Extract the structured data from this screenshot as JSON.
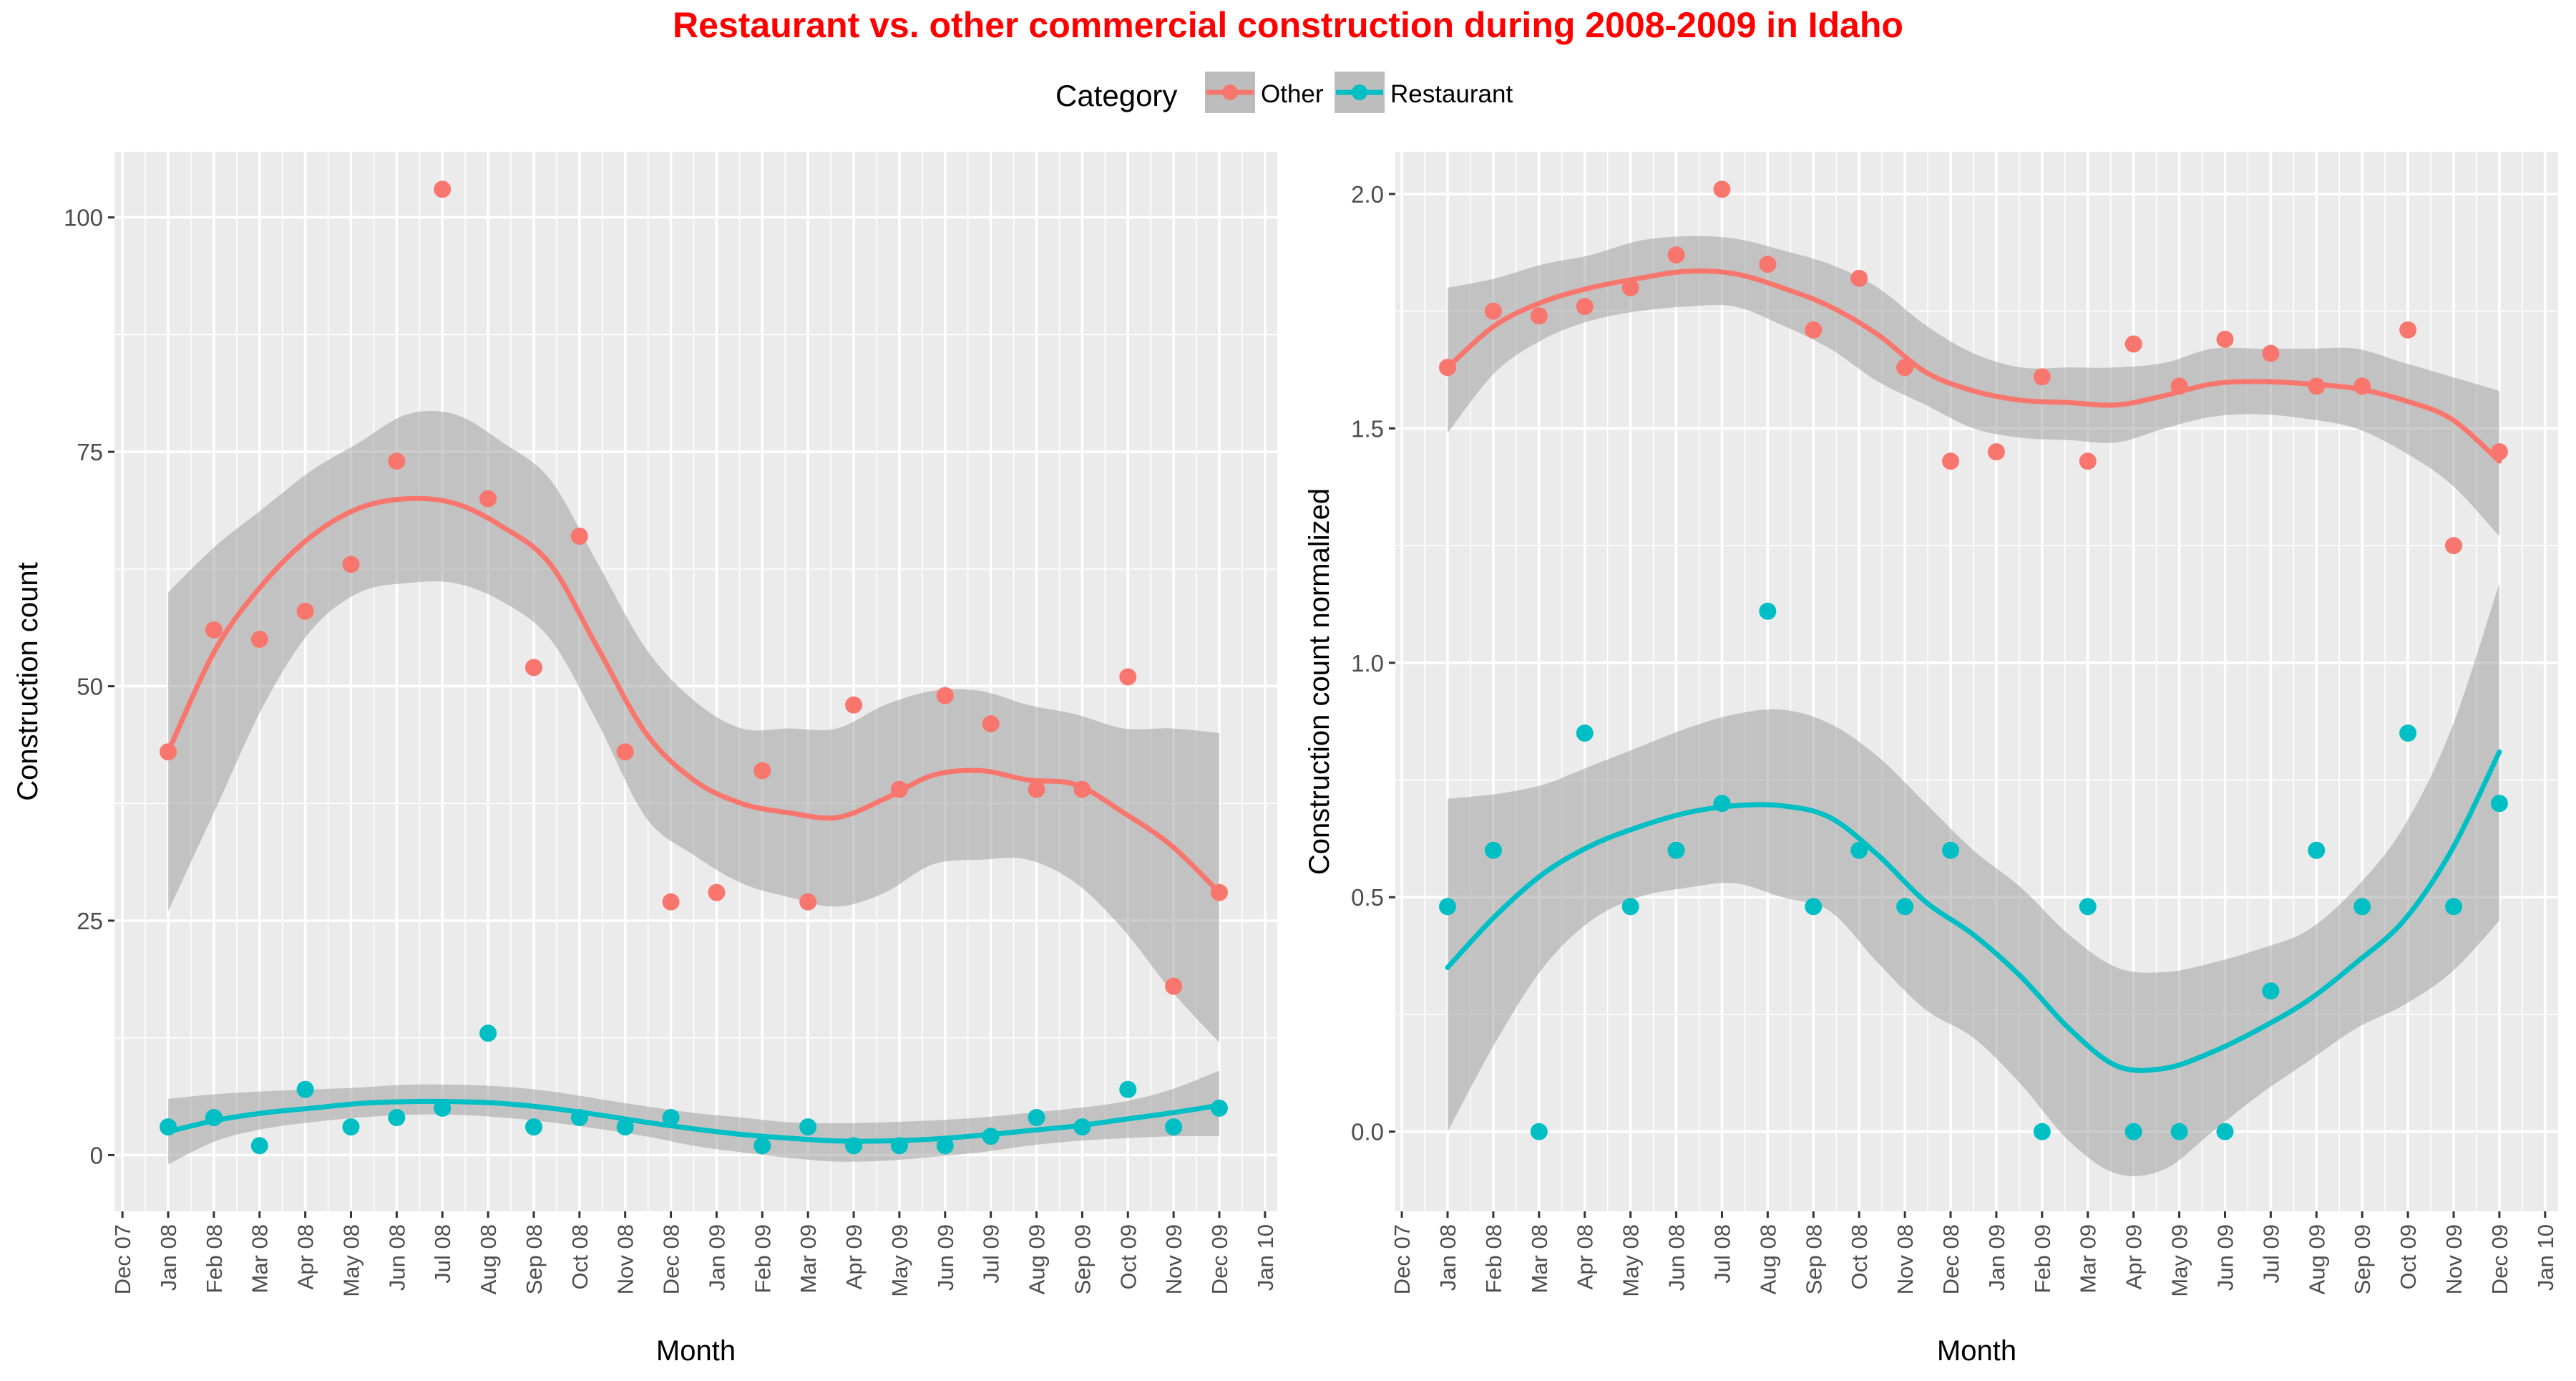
{
  "title": "Restaurant vs. other commercial construction during 2008-2009 in Idaho",
  "colors": {
    "title": "#ff0000",
    "other": "#f8766d",
    "restaurant": "#00bfc4",
    "panel_background": "#ebebeb",
    "grid": "#ffffff",
    "ribbon": "#999999"
  },
  "legend": {
    "title": "Category",
    "placement": "top",
    "items": [
      {
        "label": "Other",
        "color_key": "other"
      },
      {
        "label": "Restaurant",
        "color_key": "restaurant"
      }
    ]
  },
  "chart_data": [
    {
      "type": "scatter",
      "xlabel": "Month",
      "ylabel": "Construction count",
      "ylim": [
        -6,
        107
      ],
      "y_ticks": [
        0,
        25,
        50,
        75,
        100
      ],
      "y_tick_labels": [
        "0",
        "25",
        "50",
        "75",
        "100"
      ],
      "x_tick_labels": [
        "Dec 07",
        "Jan 08",
        "Feb 08",
        "Mar 08",
        "Apr 08",
        "May 08",
        "Jun 08",
        "Jul 08",
        "Aug 08",
        "Sep 08",
        "Oct 08",
        "Nov 08",
        "Dec 08",
        "Jan 09",
        "Feb 09",
        "Mar 09",
        "Apr 09",
        "May 09",
        "Jun 09",
        "Jul 09",
        "Aug 09",
        "Sep 09",
        "Oct 09",
        "Nov 09",
        "Dec 09",
        "Jan 10"
      ],
      "x_points": [
        "Jan 08",
        "Feb 08",
        "Mar 08",
        "Apr 08",
        "May 08",
        "Jun 08",
        "Jul 08",
        "Aug 08",
        "Sep 08",
        "Oct 08",
        "Nov 08",
        "Dec 08",
        "Jan 09",
        "Feb 09",
        "Mar 09",
        "Apr 09",
        "May 09",
        "Jun 09",
        "Jul 09",
        "Aug 09",
        "Sep 09",
        "Oct 09",
        "Nov 09",
        "Dec 09"
      ],
      "grid": true,
      "series": [
        {
          "name": "Other",
          "color_key": "other",
          "values": [
            43,
            56,
            55,
            58,
            63,
            74,
            103,
            70,
            52,
            66,
            43,
            27,
            28,
            41,
            27,
            48,
            39,
            49,
            46,
            39,
            39,
            51,
            18,
            28
          ],
          "smooth": [
            [
              0,
              43
            ],
            [
              1,
              54
            ],
            [
              2,
              61
            ],
            [
              3,
              66
            ],
            [
              4,
              69
            ],
            [
              5,
              70
            ],
            [
              6,
              69.5
            ],
            [
              7,
              67
            ],
            [
              8,
              63
            ],
            [
              9,
              54
            ],
            [
              10,
              45
            ],
            [
              11,
              40
            ],
            [
              12,
              37.5
            ],
            [
              13,
              36.5
            ],
            [
              14,
              36
            ],
            [
              15,
              38
            ],
            [
              16,
              40.5
            ],
            [
              17,
              41
            ],
            [
              18,
              40
            ],
            [
              19,
              39.5
            ],
            [
              20,
              36.5
            ],
            [
              21,
              33
            ],
            [
              22,
              28
            ]
          ],
          "band": [
            [
              0,
              26,
              60
            ],
            [
              1,
              37,
              65
            ],
            [
              2,
              48,
              69
            ],
            [
              3,
              56,
              73
            ],
            [
              4,
              60,
              76
            ],
            [
              5,
              61,
              79
            ],
            [
              6,
              61,
              79
            ],
            [
              7,
              59,
              76
            ],
            [
              8,
              55,
              72
            ],
            [
              9,
              46,
              63
            ],
            [
              10,
              36,
              54
            ],
            [
              11,
              32,
              48.5
            ],
            [
              12,
              29,
              45.5
            ],
            [
              13,
              27.5,
              45.5
            ],
            [
              14,
              26.5,
              45.5
            ],
            [
              15,
              28,
              48
            ],
            [
              16,
              31,
              49.5
            ],
            [
              17,
              31.5,
              49.5
            ],
            [
              18,
              31.5,
              48
            ],
            [
              19,
              29,
              47
            ],
            [
              20,
              24,
              45.5
            ],
            [
              21,
              17.5,
              45.5
            ],
            [
              22,
              12,
              45
            ]
          ]
        },
        {
          "name": "Restaurant",
          "color_key": "restaurant",
          "values": [
            3,
            4,
            1,
            7,
            3,
            4,
            5,
            13,
            3,
            4,
            3,
            4,
            null,
            1,
            3,
            1,
            1,
            1,
            2,
            4,
            3,
            7,
            3,
            5
          ],
          "smooth": [
            [
              0,
              2.5
            ],
            [
              1,
              3.7
            ],
            [
              2,
              4.5
            ],
            [
              3,
              5
            ],
            [
              4,
              5.5
            ],
            [
              5,
              5.7
            ],
            [
              6,
              5.7
            ],
            [
              7,
              5.5
            ],
            [
              8,
              5
            ],
            [
              9,
              4.3
            ],
            [
              10,
              3.5
            ],
            [
              11,
              2.8
            ],
            [
              12,
              2.2
            ],
            [
              13,
              1.8
            ],
            [
              14,
              1.5
            ],
            [
              15,
              1.5
            ],
            [
              16,
              1.7
            ],
            [
              17,
              2.1
            ],
            [
              18,
              2.6
            ],
            [
              19,
              3.1
            ],
            [
              20,
              3.8
            ],
            [
              21,
              4.5
            ],
            [
              22,
              5.3
            ]
          ],
          "band": [
            [
              0,
              -1,
              6
            ],
            [
              1,
              1.5,
              6.5
            ],
            [
              2,
              2.8,
              6.8
            ],
            [
              3,
              3.5,
              7
            ],
            [
              4,
              4,
              7.2
            ],
            [
              5,
              4.3,
              7.5
            ],
            [
              6,
              4.3,
              7.5
            ],
            [
              7,
              4,
              7.3
            ],
            [
              8,
              3.5,
              6.8
            ],
            [
              9,
              2.8,
              6
            ],
            [
              10,
              2,
              5.2
            ],
            [
              11,
              1,
              4.5
            ],
            [
              12,
              0.3,
              4
            ],
            [
              13,
              -0.3,
              3.5
            ],
            [
              14,
              -0.7,
              3.4
            ],
            [
              15,
              -0.6,
              3.5
            ],
            [
              16,
              -0.2,
              3.7
            ],
            [
              17,
              0.3,
              4
            ],
            [
              18,
              1,
              4.5
            ],
            [
              19,
              1.5,
              5
            ],
            [
              20,
              1.8,
              5.7
            ],
            [
              21,
              2,
              7
            ],
            [
              22,
              2,
              9
            ]
          ]
        }
      ]
    },
    {
      "type": "scatter",
      "xlabel": "Month",
      "ylabel": "Construction count normalized",
      "ylim": [
        -0.17,
        2.09
      ],
      "y_ticks": [
        0,
        0.5,
        1.0,
        1.5,
        2.0
      ],
      "y_tick_labels": [
        "0.0",
        "0.5",
        "1.0",
        "1.5",
        "2.0"
      ],
      "x_tick_labels": [
        "Dec 07",
        "Jan 08",
        "Feb 08",
        "Mar 08",
        "Apr 08",
        "May 08",
        "Jun 08",
        "Jul 08",
        "Aug 08",
        "Sep 08",
        "Oct 08",
        "Nov 08",
        "Dec 08",
        "Jan 09",
        "Feb 09",
        "Mar 09",
        "Apr 09",
        "May 09",
        "Jun 09",
        "Jul 09",
        "Aug 09",
        "Sep 09",
        "Oct 09",
        "Nov 09",
        "Dec 09",
        "Jan 10"
      ],
      "x_points": [
        "Jan 08",
        "Feb 08",
        "Mar 08",
        "Apr 08",
        "May 08",
        "Jun 08",
        "Jul 08",
        "Aug 08",
        "Sep 08",
        "Oct 08",
        "Nov 08",
        "Dec 08",
        "Jan 09",
        "Feb 09",
        "Mar 09",
        "Apr 09",
        "May 09",
        "Jun 09",
        "Jul 09",
        "Aug 09",
        "Sep 09",
        "Oct 09",
        "Nov 09",
        "Dec 09"
      ],
      "grid": true,
      "series": [
        {
          "name": "Other",
          "color_key": "other",
          "values": [
            1.63,
            1.75,
            1.74,
            1.76,
            1.8,
            1.87,
            2.01,
            1.85,
            1.71,
            1.82,
            1.63,
            1.43,
            1.45,
            1.61,
            1.43,
            1.68,
            1.59,
            1.69,
            1.66,
            1.59,
            1.59,
            1.71,
            1.25,
            1.45
          ],
          "smooth": [
            [
              0,
              1.63
            ],
            [
              1,
              1.72
            ],
            [
              2,
              1.77
            ],
            [
              3,
              1.8
            ],
            [
              4,
              1.82
            ],
            [
              5,
              1.835
            ],
            [
              6,
              1.83
            ],
            [
              7,
              1.8
            ],
            [
              8,
              1.76
            ],
            [
              9,
              1.7
            ],
            [
              10,
              1.62
            ],
            [
              11,
              1.58
            ],
            [
              12,
              1.56
            ],
            [
              13,
              1.555
            ],
            [
              14,
              1.55
            ],
            [
              15,
              1.57
            ],
            [
              16,
              1.595
            ],
            [
              17,
              1.6
            ],
            [
              18,
              1.595
            ],
            [
              19,
              1.585
            ],
            [
              20,
              1.56
            ],
            [
              21,
              1.52
            ],
            [
              22,
              1.43
            ]
          ],
          "band": [
            [
              0,
              1.49,
              1.8
            ],
            [
              1,
              1.62,
              1.82
            ],
            [
              2,
              1.69,
              1.85
            ],
            [
              3,
              1.73,
              1.87
            ],
            [
              4,
              1.75,
              1.9
            ],
            [
              5,
              1.76,
              1.91
            ],
            [
              6,
              1.76,
              1.905
            ],
            [
              7,
              1.72,
              1.88
            ],
            [
              8,
              1.67,
              1.85
            ],
            [
              9,
              1.6,
              1.8
            ],
            [
              10,
              1.55,
              1.72
            ],
            [
              11,
              1.5,
              1.66
            ],
            [
              12,
              1.48,
              1.63
            ],
            [
              13,
              1.475,
              1.63
            ],
            [
              14,
              1.47,
              1.63
            ],
            [
              15,
              1.5,
              1.64
            ],
            [
              16,
              1.525,
              1.67
            ],
            [
              17,
              1.53,
              1.67
            ],
            [
              18,
              1.52,
              1.67
            ],
            [
              19,
              1.5,
              1.67
            ],
            [
              20,
              1.45,
              1.64
            ],
            [
              21,
              1.38,
              1.61
            ],
            [
              22,
              1.27,
              1.58
            ]
          ]
        },
        {
          "name": "Restaurant",
          "color_key": "restaurant",
          "values": [
            0.48,
            0.6,
            0.0,
            0.85,
            0.48,
            0.6,
            0.7,
            1.11,
            0.48,
            0.6,
            0.48,
            0.6,
            null,
            0.0,
            0.48,
            0.0,
            0.0,
            0.0,
            0.3,
            0.6,
            0.48,
            0.85,
            0.48,
            0.7
          ],
          "smooth": [
            [
              0,
              0.35
            ],
            [
              1,
              0.46
            ],
            [
              2,
              0.55
            ],
            [
              3,
              0.61
            ],
            [
              4,
              0.65
            ],
            [
              5,
              0.68
            ],
            [
              6,
              0.695
            ],
            [
              7,
              0.695
            ],
            [
              8,
              0.67
            ],
            [
              9,
              0.59
            ],
            [
              10,
              0.49
            ],
            [
              11,
              0.42
            ],
            [
              12,
              0.33
            ],
            [
              13,
              0.22
            ],
            [
              14,
              0.14
            ],
            [
              15,
              0.135
            ],
            [
              16,
              0.17
            ],
            [
              17,
              0.22
            ],
            [
              18,
              0.28
            ],
            [
              19,
              0.36
            ],
            [
              20,
              0.45
            ],
            [
              21,
              0.6
            ],
            [
              22,
              0.81
            ]
          ],
          "band": [
            [
              0,
              0.0,
              0.71
            ],
            [
              1,
              0.19,
              0.72
            ],
            [
              2,
              0.35,
              0.74
            ],
            [
              3,
              0.45,
              0.78
            ],
            [
              4,
              0.5,
              0.82
            ],
            [
              5,
              0.52,
              0.86
            ],
            [
              6,
              0.53,
              0.89
            ],
            [
              7,
              0.5,
              0.9
            ],
            [
              8,
              0.47,
              0.87
            ],
            [
              9,
              0.36,
              0.8
            ],
            [
              10,
              0.26,
              0.7
            ],
            [
              11,
              0.2,
              0.6
            ],
            [
              12,
              0.1,
              0.52
            ],
            [
              13,
              -0.02,
              0.42
            ],
            [
              14,
              -0.09,
              0.35
            ],
            [
              15,
              -0.08,
              0.34
            ],
            [
              16,
              0.0,
              0.36
            ],
            [
              17,
              0.08,
              0.39
            ],
            [
              18,
              0.15,
              0.43
            ],
            [
              19,
              0.22,
              0.52
            ],
            [
              20,
              0.27,
              0.65
            ],
            [
              21,
              0.34,
              0.86
            ],
            [
              22,
              0.45,
              1.17
            ]
          ]
        }
      ]
    }
  ]
}
